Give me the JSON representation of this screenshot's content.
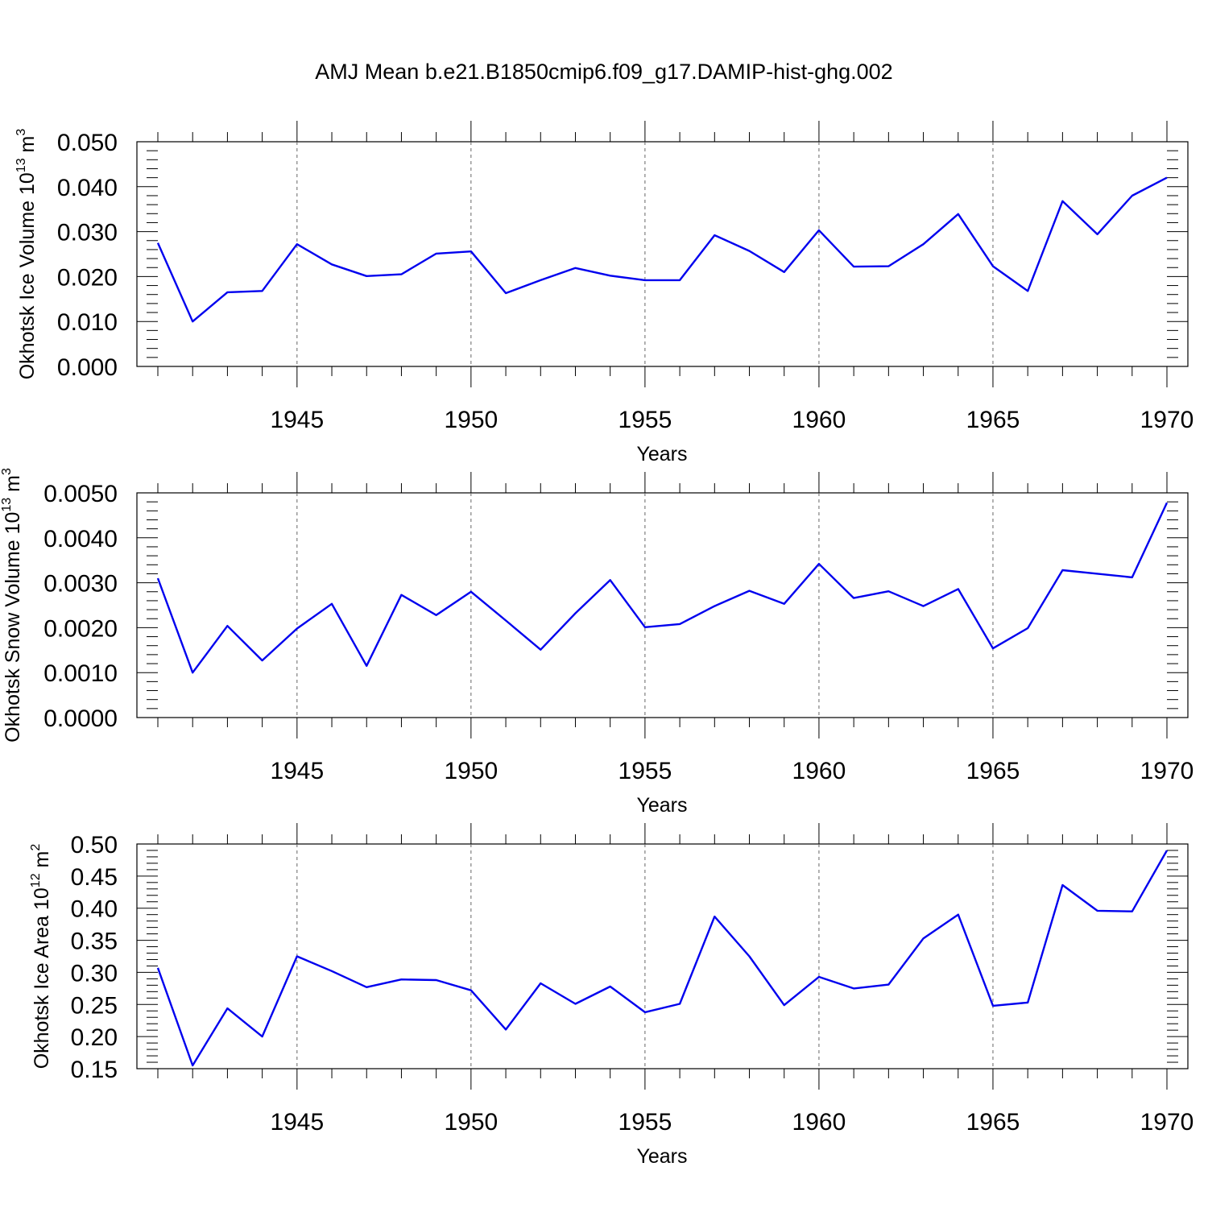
{
  "title": "AMJ Mean b.e21.B1850cmip6.f09_g17.DAMIP-hist-ghg.002",
  "colors": {
    "line": "#0000ee",
    "axis": "#000000",
    "grid": "#666666"
  },
  "chart_data": [
    {
      "type": "line",
      "xlabel": "Years",
      "ylabel": "Okhotsk Ice Volume 10",
      "ylabel_sup": "13",
      "ylabel_unit": " m",
      "ylabel_unit_sup": "3",
      "xlim": [
        1941,
        1970
      ],
      "ylim": [
        0.0,
        0.05
      ],
      "yticks": [
        "0.000",
        "0.010",
        "0.020",
        "0.030",
        "0.040",
        "0.050"
      ],
      "xticks": [
        "1945",
        "1950",
        "1955",
        "1960",
        "1965",
        "1970"
      ],
      "grid": "dashed vertical lines at major x ticks",
      "x": [
        1941,
        1942,
        1943,
        1944,
        1945,
        1946,
        1947,
        1948,
        1949,
        1950,
        1951,
        1952,
        1953,
        1954,
        1955,
        1956,
        1957,
        1958,
        1959,
        1960,
        1961,
        1962,
        1963,
        1964,
        1965,
        1966,
        1967,
        1968,
        1969,
        1970
      ],
      "values": [
        0.0275,
        0.01,
        0.0165,
        0.0168,
        0.0272,
        0.0227,
        0.0201,
        0.0205,
        0.0251,
        0.0256,
        0.0163,
        0.0192,
        0.0219,
        0.0202,
        0.0192,
        0.0192,
        0.0292,
        0.0257,
        0.021,
        0.0303,
        0.0222,
        0.0223,
        0.0272,
        0.0339,
        0.0223,
        0.0168,
        0.0368,
        0.0294,
        0.038,
        0.042
      ]
    },
    {
      "type": "line",
      "xlabel": "Years",
      "ylabel": "Okhotsk Snow Volume 10",
      "ylabel_sup": "13",
      "ylabel_unit": " m",
      "ylabel_unit_sup": "3",
      "xlim": [
        1941,
        1970
      ],
      "ylim": [
        0.0,
        0.005
      ],
      "yticks": [
        "0.0000",
        "0.0010",
        "0.0020",
        "0.0030",
        "0.0040",
        "0.0050"
      ],
      "xticks": [
        "1945",
        "1950",
        "1955",
        "1960",
        "1965",
        "1970"
      ],
      "grid": "dashed vertical lines at major x ticks",
      "x": [
        1941,
        1942,
        1943,
        1944,
        1945,
        1946,
        1947,
        1948,
        1949,
        1950,
        1951,
        1952,
        1953,
        1954,
        1955,
        1956,
        1957,
        1958,
        1959,
        1960,
        1961,
        1962,
        1963,
        1964,
        1965,
        1966,
        1967,
        1968,
        1969,
        1970
      ],
      "values": [
        0.0031,
        0.001,
        0.00204,
        0.00127,
        0.00198,
        0.00253,
        0.00115,
        0.00273,
        0.00228,
        0.0028,
        0.00216,
        0.00151,
        0.00232,
        0.00306,
        0.00201,
        0.00208,
        0.00248,
        0.00282,
        0.00253,
        0.00342,
        0.00266,
        0.00281,
        0.00248,
        0.00286,
        0.00154,
        0.00199,
        0.00328,
        0.0032,
        0.00312,
        0.00478
      ]
    },
    {
      "type": "line",
      "xlabel": "Years",
      "ylabel": "Okhotsk Ice Area 10",
      "ylabel_sup": "12",
      "ylabel_unit": " m",
      "ylabel_unit_sup": "2",
      "xlim": [
        1941,
        1970
      ],
      "ylim": [
        0.15,
        0.5
      ],
      "yticks": [
        "0.15",
        "0.20",
        "0.25",
        "0.30",
        "0.35",
        "0.40",
        "0.45",
        "0.50"
      ],
      "xticks": [
        "1945",
        "1950",
        "1955",
        "1960",
        "1965",
        "1970"
      ],
      "grid": "dashed vertical lines at major x ticks",
      "x": [
        1941,
        1942,
        1943,
        1944,
        1945,
        1946,
        1947,
        1948,
        1949,
        1950,
        1951,
        1952,
        1953,
        1954,
        1955,
        1956,
        1957,
        1958,
        1959,
        1960,
        1961,
        1962,
        1963,
        1964,
        1965,
        1966,
        1967,
        1968,
        1969,
        1970
      ],
      "values": [
        0.307,
        0.155,
        0.244,
        0.2,
        0.325,
        0.302,
        0.277,
        0.289,
        0.288,
        0.272,
        0.211,
        0.283,
        0.251,
        0.278,
        0.238,
        0.251,
        0.387,
        0.325,
        0.249,
        0.293,
        0.275,
        0.281,
        0.353,
        0.39,
        0.248,
        0.253,
        0.436,
        0.396,
        0.395,
        0.49
      ]
    }
  ]
}
